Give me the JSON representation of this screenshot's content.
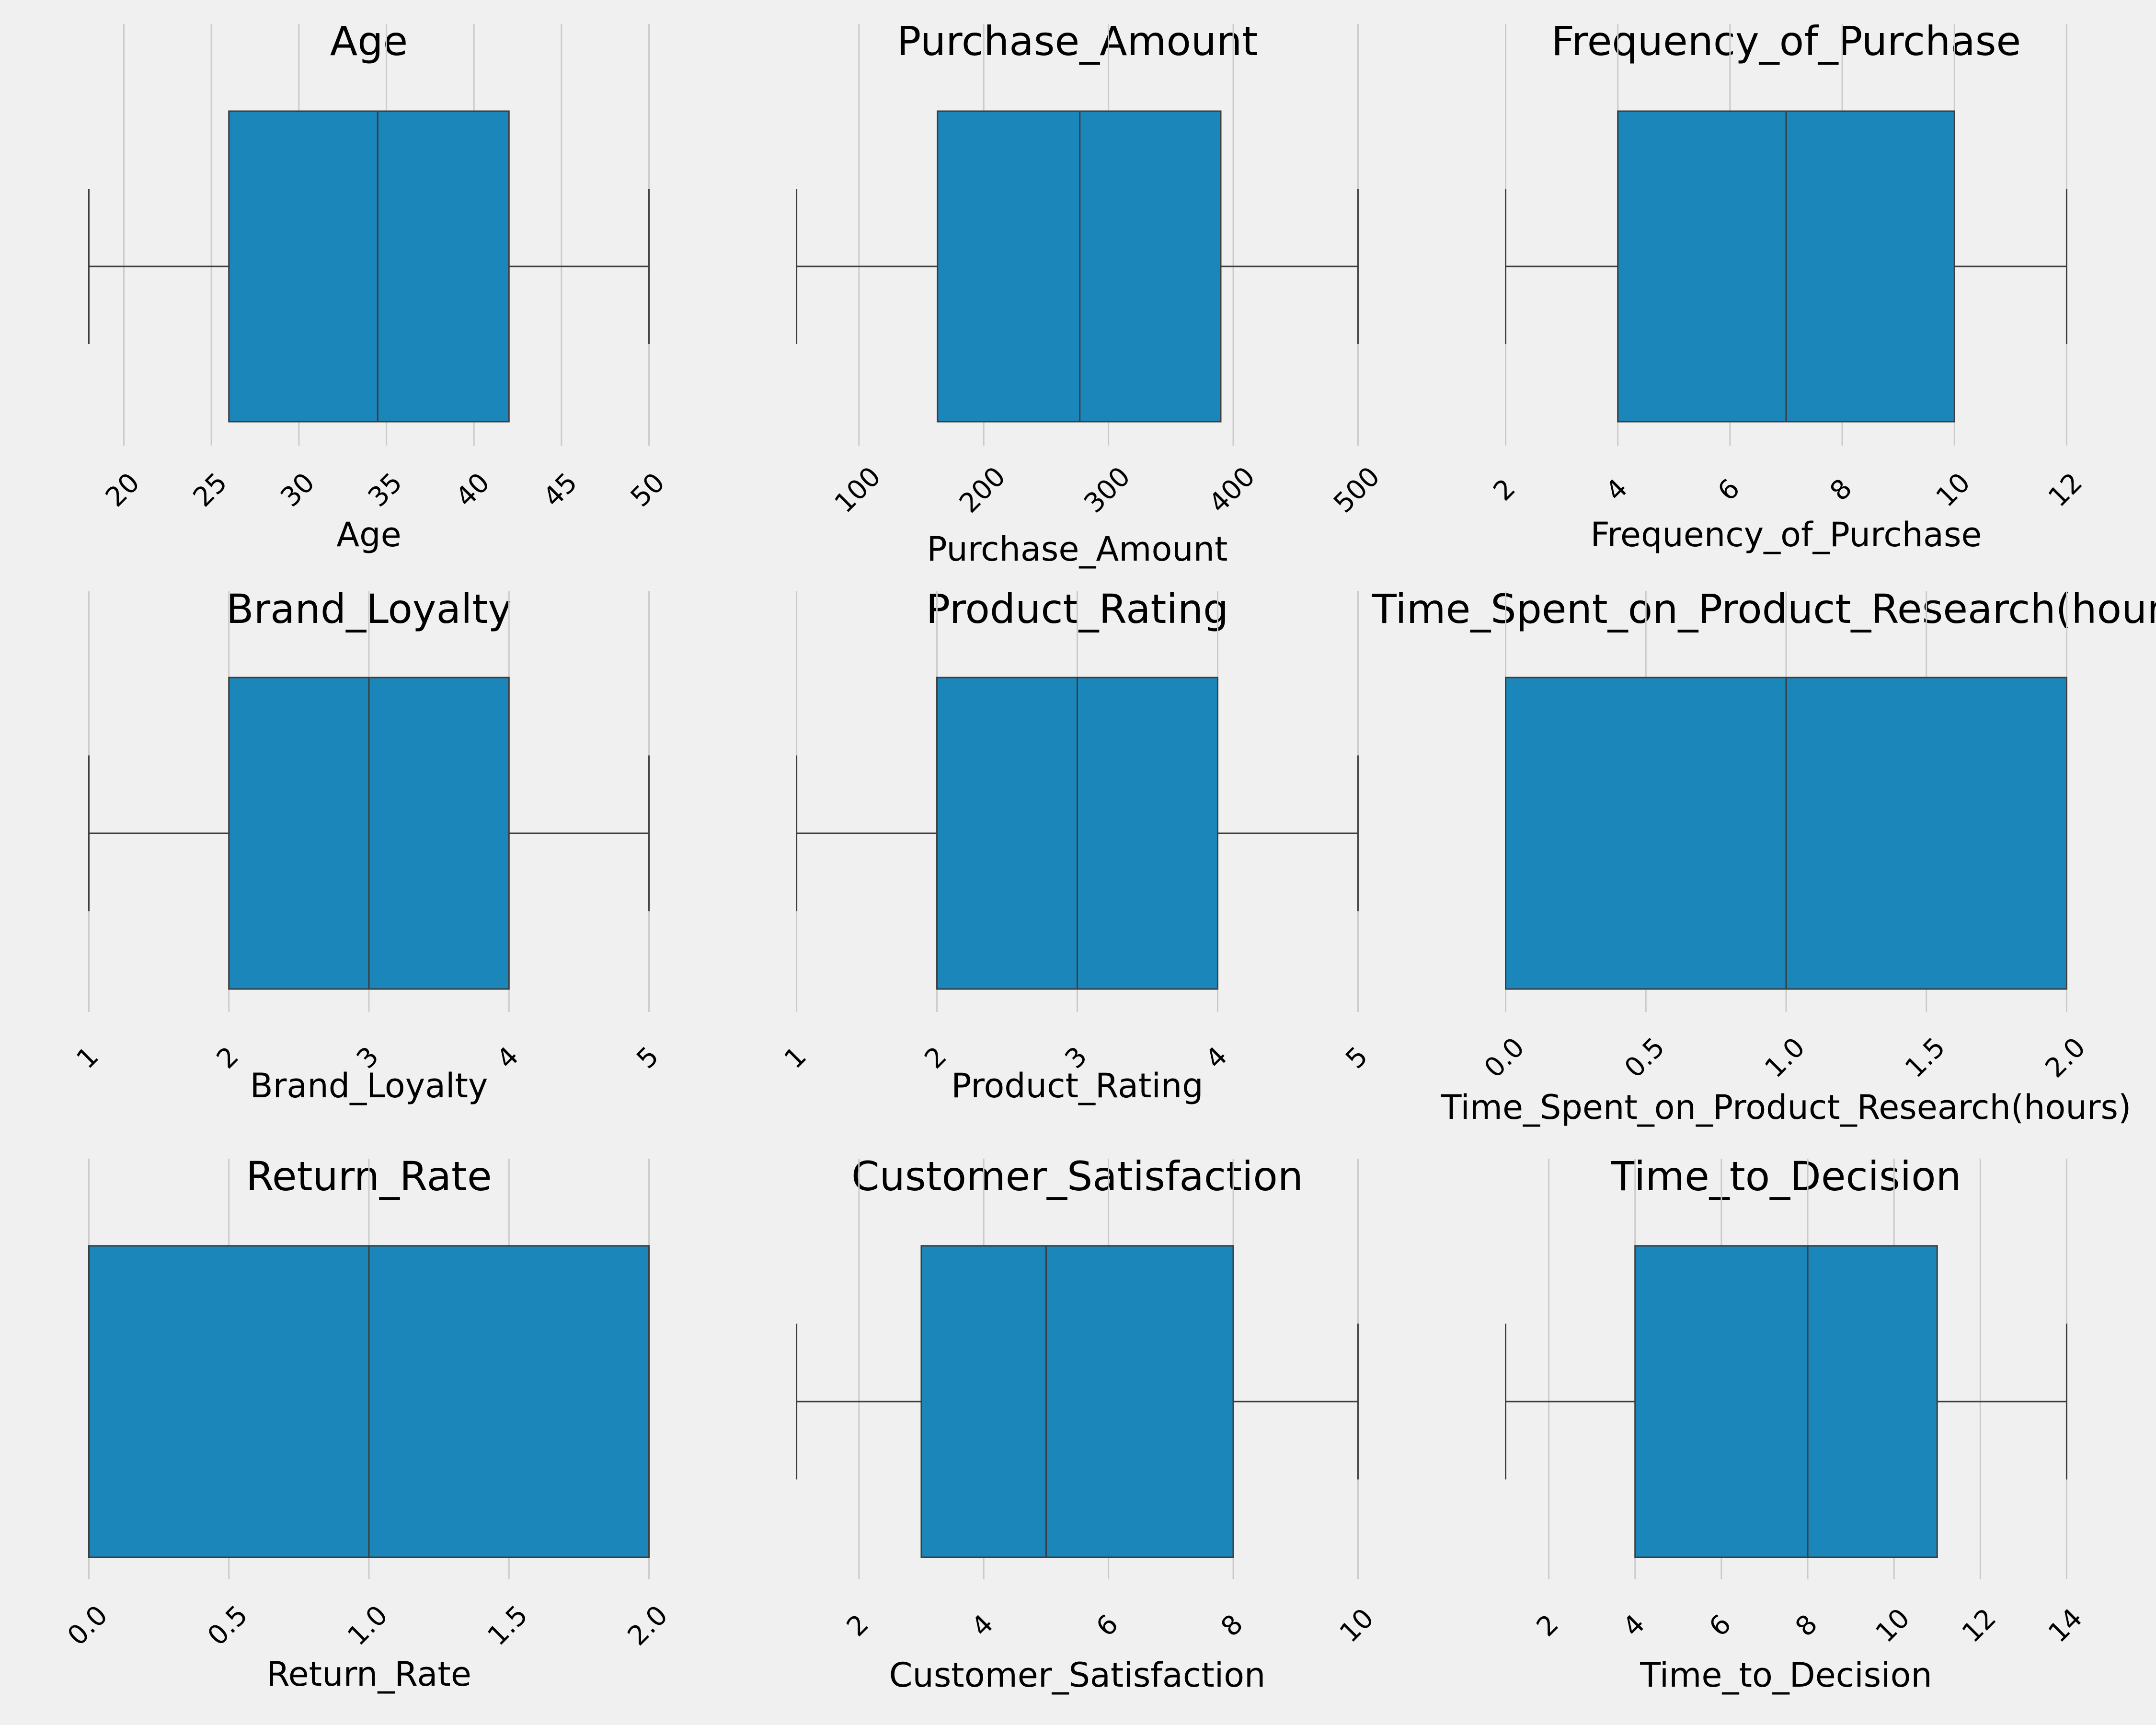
{
  "colors": {
    "background": "#f0f0f0",
    "box_fill": "#1b86ba",
    "line": "#3d3d3d",
    "grid": "#cbcbcb"
  },
  "chart_data": [
    {
      "type": "boxplot",
      "title": "Age",
      "xlabel": "Age",
      "xlim": [
        16.4,
        51.6
      ],
      "ticks": [
        20,
        25,
        30,
        35,
        40,
        45,
        50
      ],
      "tick_labels": [
        "20",
        "25",
        "30",
        "35",
        "40",
        "45",
        "50"
      ],
      "stats": {
        "min": 18,
        "q1": 26,
        "median": 34.5,
        "q3": 42,
        "max": 50
      }
    },
    {
      "type": "boxplot",
      "title": "Purchase_Amount",
      "xlabel": "Purchase_Amount",
      "xlim": [
        27.5,
        522.5
      ],
      "ticks": [
        100,
        200,
        300,
        400,
        500
      ],
      "tick_labels": [
        "100",
        "200",
        "300",
        "400",
        "500"
      ],
      "stats": {
        "min": 50,
        "q1": 163,
        "median": 277,
        "q3": 390,
        "max": 500
      }
    },
    {
      "type": "boxplot",
      "title": "Frequency_of_Purchase",
      "xlabel": "Frequency_of_Purchase",
      "xlim": [
        1.5,
        12.5
      ],
      "ticks": [
        2,
        4,
        6,
        8,
        10,
        12
      ],
      "tick_labels": [
        "2",
        "4",
        "6",
        "8",
        "10",
        "12"
      ],
      "stats": {
        "min": 2,
        "q1": 4,
        "median": 7,
        "q3": 10,
        "max": 12
      }
    },
    {
      "type": "boxplot",
      "title": "Brand_Loyalty",
      "xlabel": "Brand_Loyalty",
      "xlim": [
        0.8,
        5.2
      ],
      "ticks": [
        1,
        2,
        3,
        4,
        5
      ],
      "tick_labels": [
        "1",
        "2",
        "3",
        "4",
        "5"
      ],
      "stats": {
        "min": 1,
        "q1": 2,
        "median": 3,
        "q3": 4,
        "max": 5
      }
    },
    {
      "type": "boxplot",
      "title": "Product_Rating",
      "xlabel": "Product_Rating",
      "xlim": [
        0.8,
        5.2
      ],
      "ticks": [
        1,
        2,
        3,
        4,
        5
      ],
      "tick_labels": [
        "1",
        "2",
        "3",
        "4",
        "5"
      ],
      "stats": {
        "min": 1,
        "q1": 2,
        "median": 3,
        "q3": 4,
        "max": 5
      }
    },
    {
      "type": "boxplot",
      "title": "Time_Spent_on_Product_Research(hours)",
      "xlabel": "Time_Spent_on_Product_Research(hours)",
      "xlim": [
        -0.1,
        2.1
      ],
      "ticks": [
        0,
        0.5,
        1,
        1.5,
        2
      ],
      "tick_labels": [
        "0.0",
        "0.5",
        "1.0",
        "1.5",
        "2.0"
      ],
      "stats": {
        "min": 0,
        "q1": 0,
        "median": 1,
        "q3": 2,
        "max": 2
      }
    },
    {
      "type": "boxplot",
      "title": "Return_Rate",
      "xlabel": "Return_Rate",
      "xlim": [
        -0.1,
        2.1
      ],
      "ticks": [
        0,
        0.5,
        1,
        1.5,
        2
      ],
      "tick_labels": [
        "0.0",
        "0.5",
        "1.0",
        "1.5",
        "2.0"
      ],
      "stats": {
        "min": 0,
        "q1": 0,
        "median": 1,
        "q3": 2,
        "max": 2
      }
    },
    {
      "type": "boxplot",
      "title": "Customer_Satisfaction",
      "xlabel": "Customer_Satisfaction",
      "xlim": [
        0.55,
        10.45
      ],
      "ticks": [
        2,
        4,
        6,
        8,
        10
      ],
      "tick_labels": [
        "2",
        "4",
        "6",
        "8",
        "10"
      ],
      "stats": {
        "min": 1,
        "q1": 3,
        "median": 5,
        "q3": 8,
        "max": 10
      }
    },
    {
      "type": "boxplot",
      "title": "Time_to_Decision",
      "xlabel": "Time_to_Decision",
      "xlim": [
        0.35,
        14.65
      ],
      "ticks": [
        2,
        4,
        6,
        8,
        10,
        12,
        14
      ],
      "tick_labels": [
        "2",
        "4",
        "6",
        "8",
        "10",
        "12",
        "14"
      ],
      "stats": {
        "min": 1,
        "q1": 4,
        "median": 8,
        "q3": 11,
        "max": 14
      }
    }
  ]
}
